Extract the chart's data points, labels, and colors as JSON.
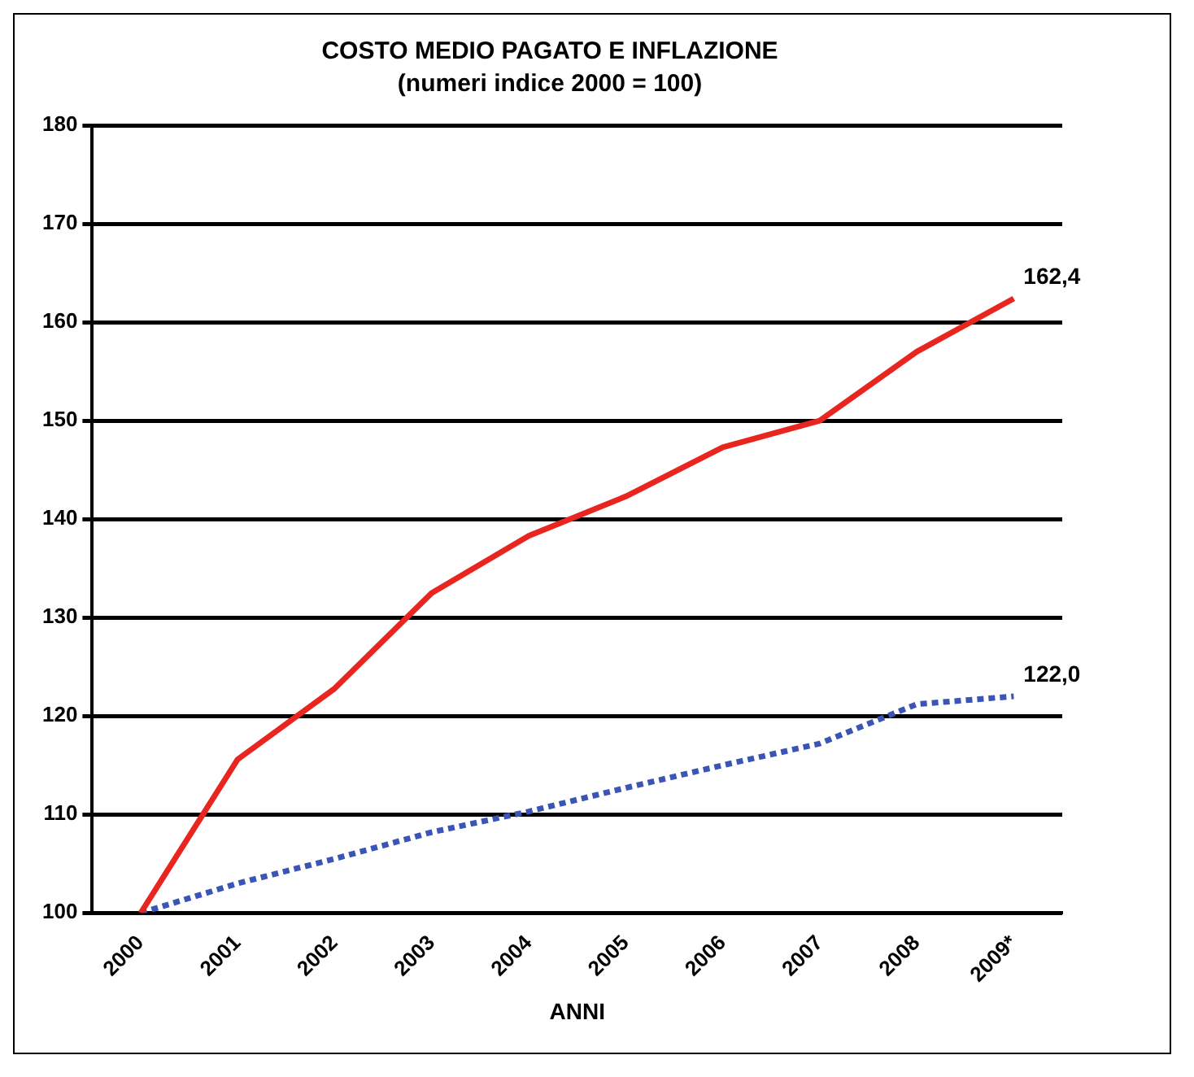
{
  "chart_data": {
    "type": "line",
    "title": "COSTO MEDIO PAGATO E INFLAZIONE",
    "subtitle": "(numeri indice 2000 = 100)",
    "xlabel": "ANNI",
    "categories": [
      "2000",
      "2001",
      "2002",
      "2003",
      "2004",
      "2005",
      "2006",
      "2007",
      "2008",
      "2009*"
    ],
    "series": [
      {
        "color": "#e8261f",
        "line_style": "solid",
        "values": [
          100,
          115.6,
          122.8,
          132.5,
          138.3,
          142.3,
          147.3,
          150,
          157,
          162.4
        ],
        "value_labels": [
          null,
          null,
          null,
          null,
          null,
          null,
          null,
          null,
          null,
          "162,4"
        ]
      },
      {
        "color": "#3a55b4",
        "line_style": "dotted",
        "values": [
          100,
          103,
          105.5,
          108.2,
          110.3,
          112.7,
          115,
          117.2,
          121.2,
          122.0
        ],
        "value_labels": [
          null,
          null,
          null,
          null,
          null,
          null,
          null,
          null,
          null,
          "122,0"
        ]
      }
    ],
    "ylim": [
      100,
      180
    ],
    "yticks": [
      100,
      110,
      120,
      130,
      140,
      150,
      160,
      170,
      180
    ],
    "grid": "y",
    "marker": "none",
    "legend": false
  }
}
